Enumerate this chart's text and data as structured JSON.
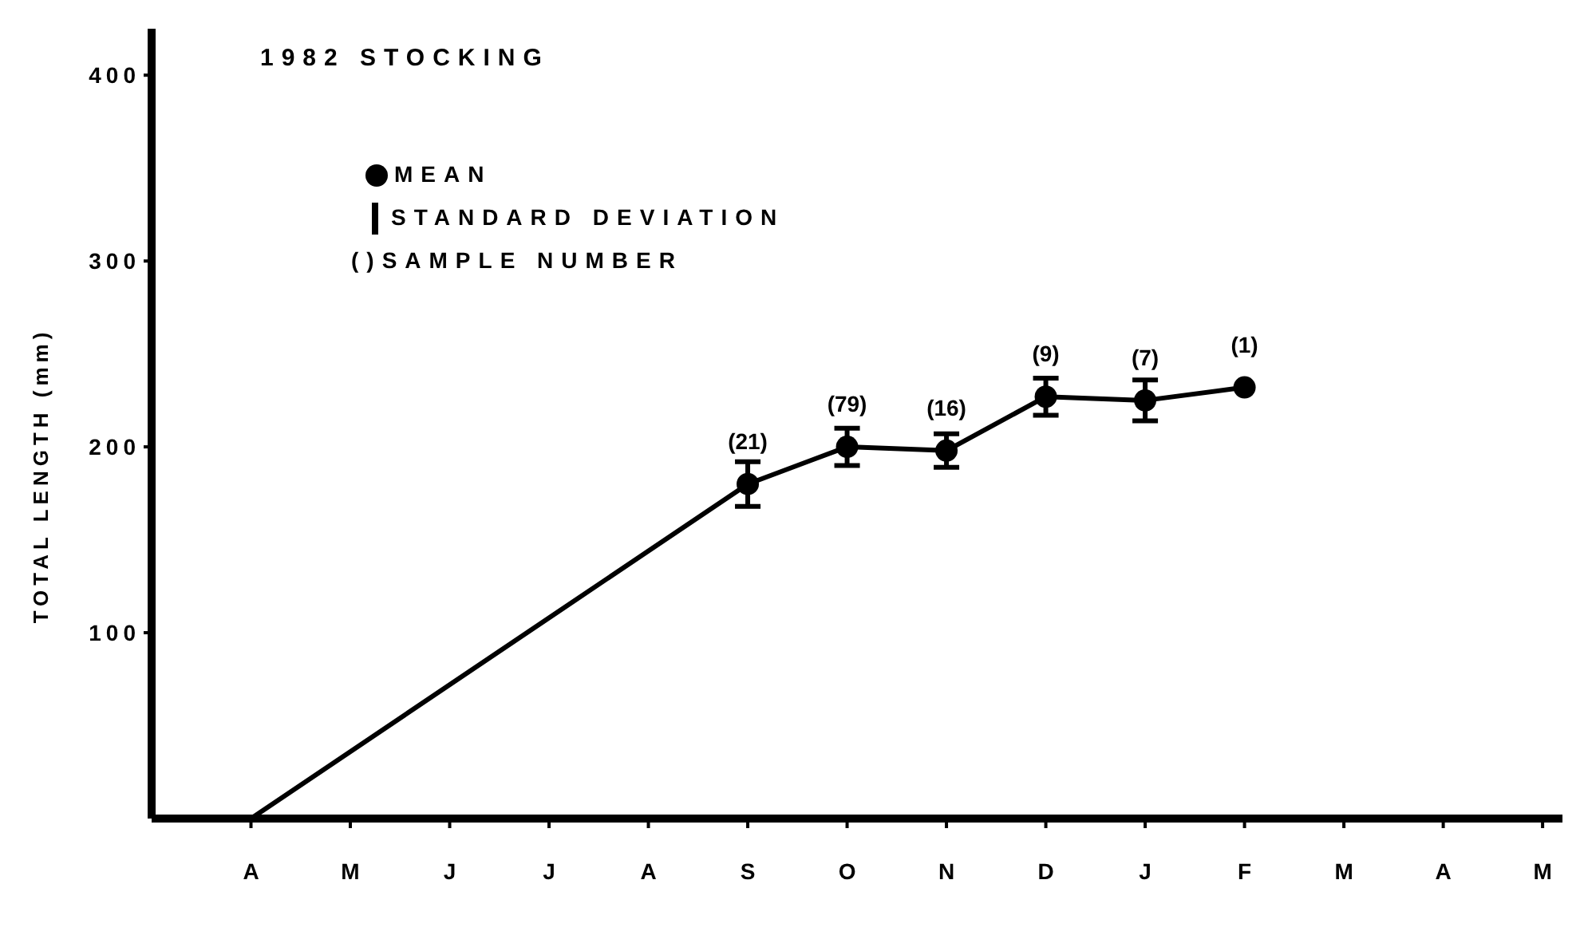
{
  "chart_data": {
    "type": "line",
    "title": "1982 STOCKING",
    "ylabel": "TOTAL LENGTH (mm)",
    "categories": [
      "A",
      "M",
      "J",
      "J",
      "A",
      "S",
      "O",
      "N",
      "D",
      "J",
      "F",
      "M",
      "A",
      "M"
    ],
    "series": [
      {
        "color": "#000000",
        "marker": "none",
        "values": [
          0,
          null,
          null,
          null,
          null,
          180,
          200,
          198,
          227,
          225,
          232,
          null,
          null,
          null
        ]
      },
      {
        "type": "scatter",
        "name": "MEAN",
        "color": "#000000",
        "marker": "circle",
        "values": [
          null,
          null,
          null,
          null,
          null,
          180,
          200,
          198,
          227,
          225,
          232,
          null,
          null,
          null
        ],
        "errors": [
          null,
          null,
          null,
          null,
          null,
          12,
          10,
          9,
          10,
          11,
          null,
          null,
          null,
          null
        ]
      }
    ],
    "annotations": [
      "STANDARD DEVIATION",
      "()SAMPLE NUMBER",
      {
        "text": "(21)",
        "x": "S",
        "y": 180
      },
      {
        "text": "(79)",
        "x": "O",
        "y": 200
      },
      {
        "text": "(16)",
        "x": "N",
        "y": 198
      },
      {
        "text": "(9)",
        "x": "D",
        "y": 227
      },
      {
        "text": "(7)",
        "y": 225
      },
      {
        "text": "(1)",
        "x": "F",
        "y": 232
      }
    ],
    "ylim": [
      0,
      425
    ],
    "yticks": [
      100,
      200,
      300,
      400
    ],
    "grid": false,
    "legend": "top left"
  }
}
